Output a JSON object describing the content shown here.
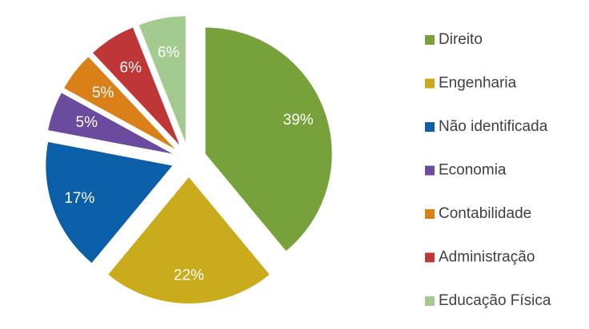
{
  "chart_data": {
    "type": "pie",
    "categories": [
      "Direito",
      "Engenharia",
      "Não identificada",
      "Economia",
      "Contabilidade",
      "Administração",
      "Educação Física"
    ],
    "values": [
      39,
      22,
      17,
      5,
      5,
      6,
      6
    ],
    "value_labels": [
      "39%",
      "22%",
      "17%",
      "5%",
      "5%",
      "6%",
      "6%"
    ],
    "colors": [
      "#77a13a",
      "#c9ab1b",
      "#0b5ea8",
      "#6b4b9d",
      "#d98019",
      "#bf3636",
      "#a4cb8f"
    ],
    "legend": "right"
  }
}
